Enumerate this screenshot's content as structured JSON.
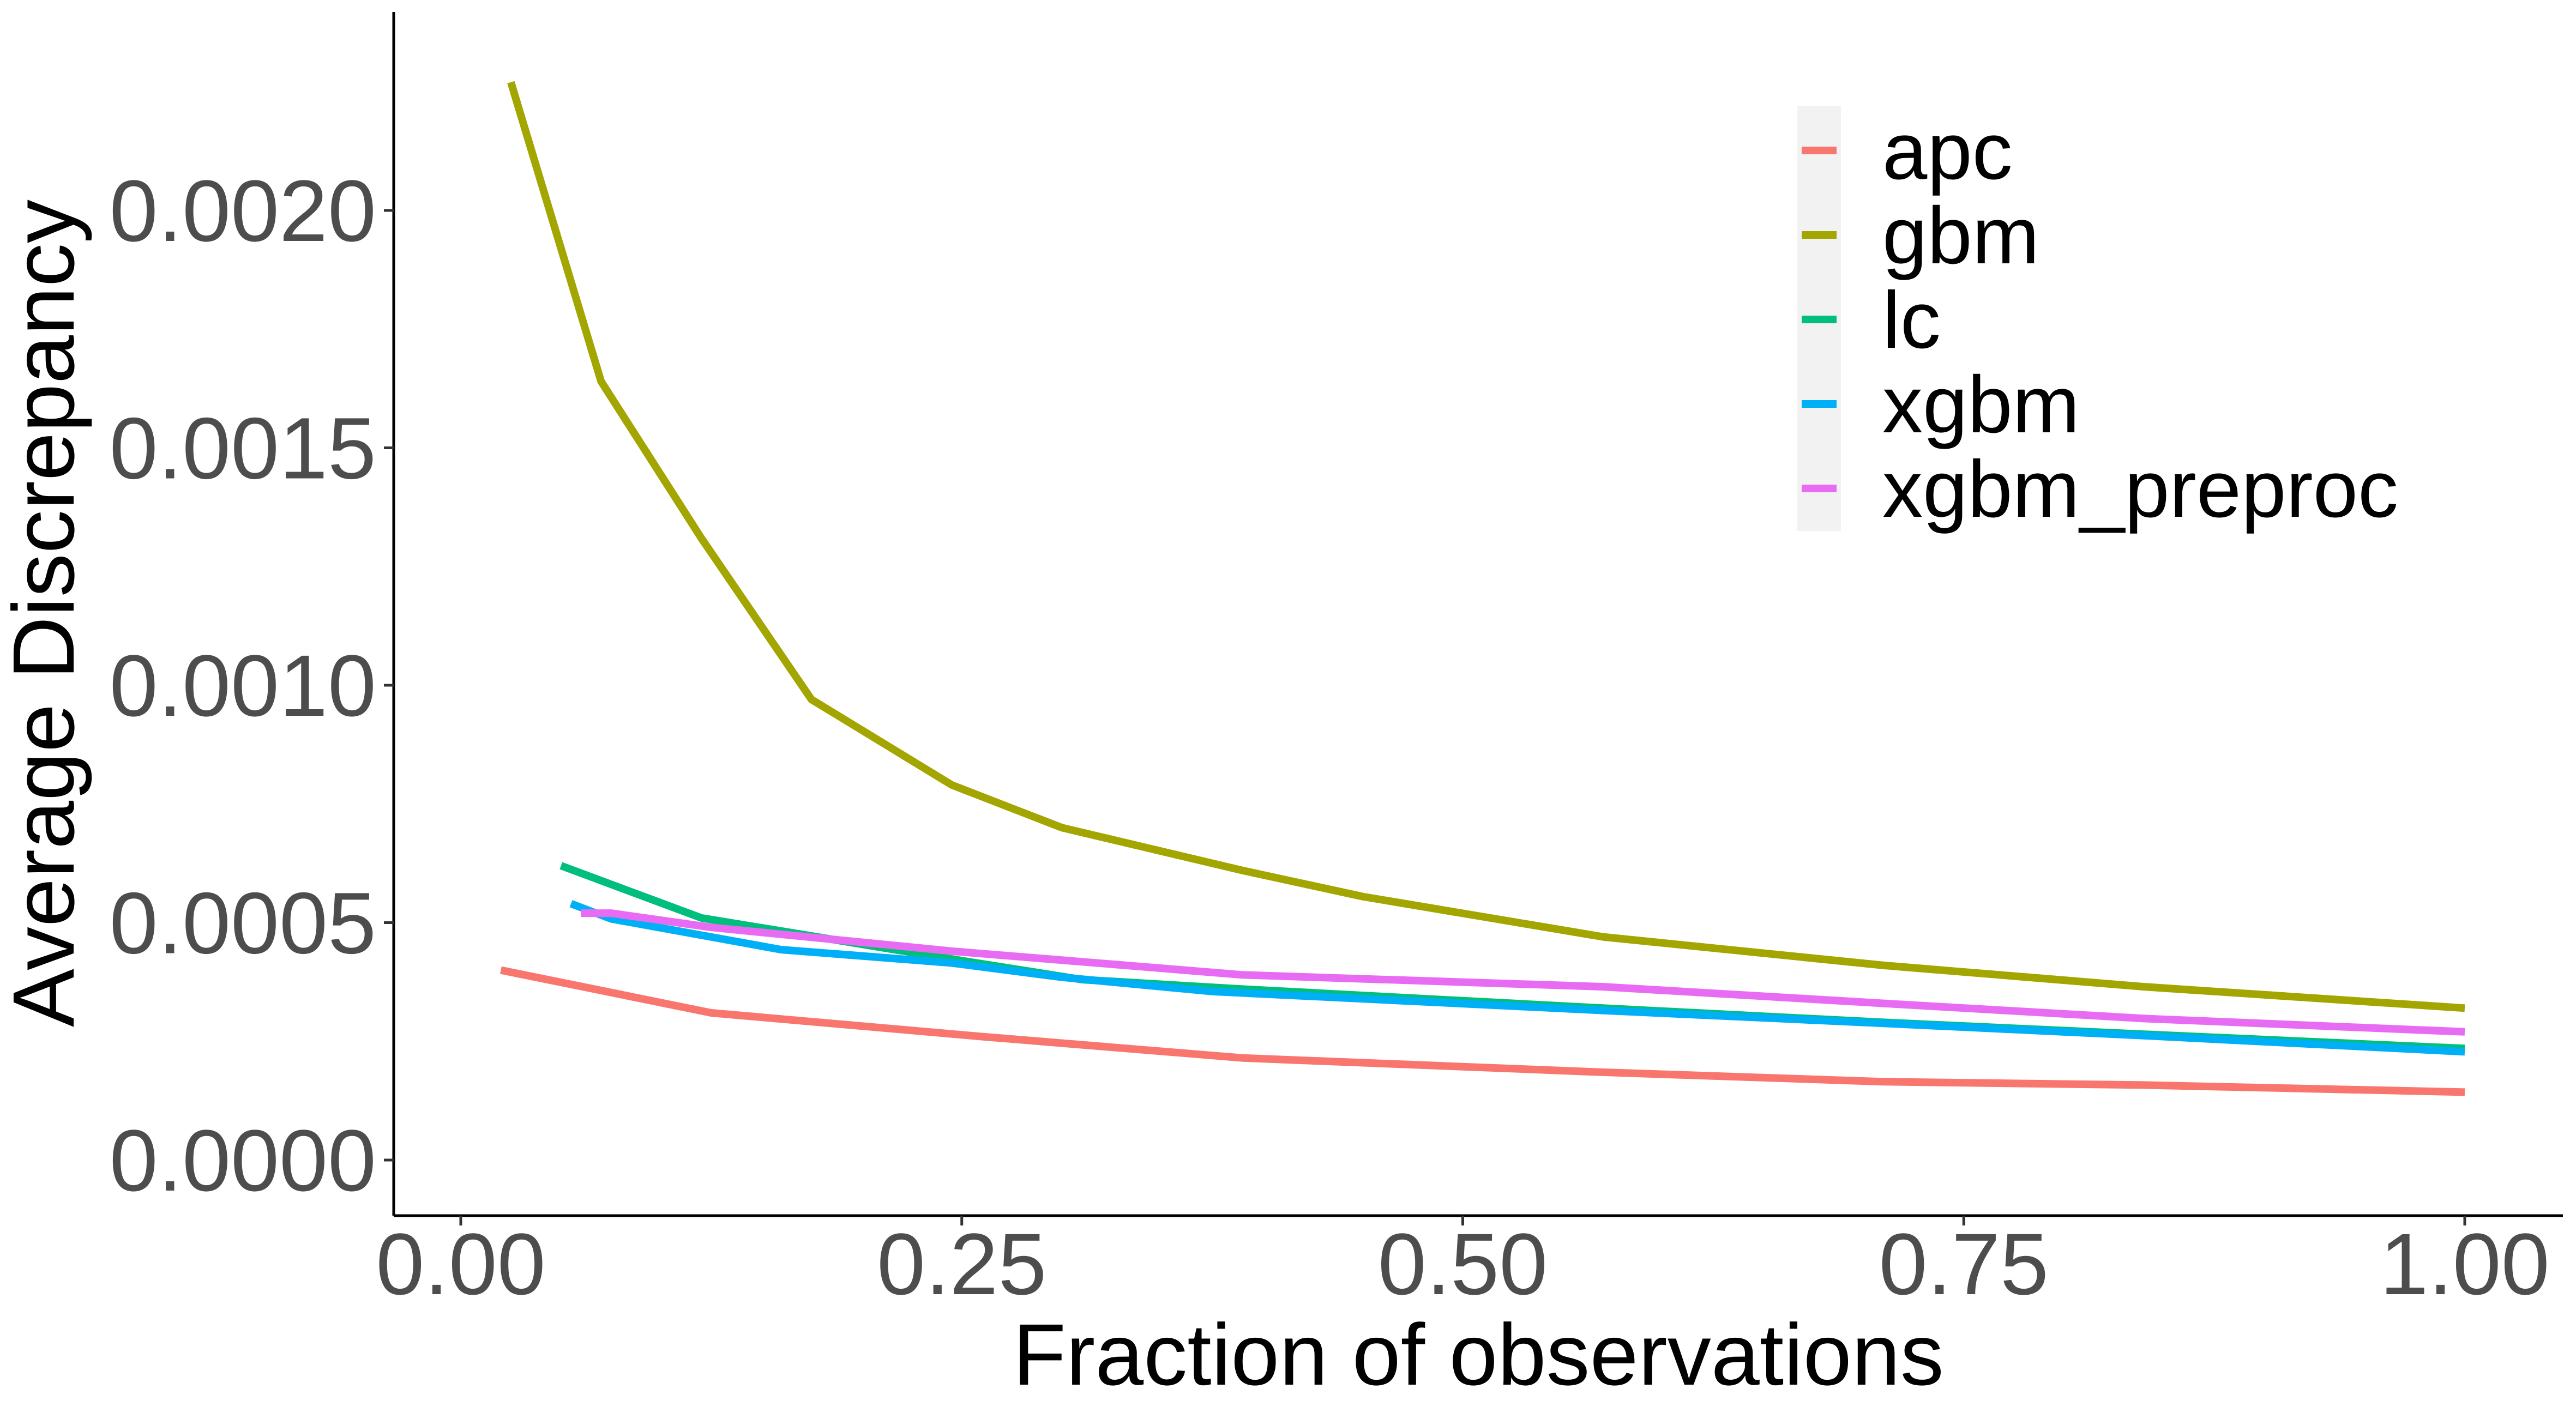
{
  "chart_data": {
    "type": "line",
    "title": "",
    "xlabel": "Fraction of observations",
    "ylabel": "Average Discrepancy",
    "xlim": [
      0,
      1.0
    ],
    "ylim": [
      0,
      0.0023
    ],
    "x_ticks": [
      0.0,
      0.25,
      0.5,
      0.75,
      1.0
    ],
    "x_tick_labels": [
      "0.00",
      "0.25",
      "0.50",
      "0.75",
      "1.00"
    ],
    "y_ticks": [
      0.0,
      0.0005,
      0.001,
      0.0015,
      0.002
    ],
    "y_tick_labels": [
      "0.0000",
      "0.0005",
      "0.0010",
      "0.0015",
      "0.0020"
    ],
    "grid": false,
    "legend_position": "top-right",
    "series": [
      {
        "name": "apc",
        "color": "#F8766D",
        "x": [
          0.02,
          0.125,
          0.26,
          0.39,
          0.57,
          0.71,
          0.84,
          1.0
        ],
        "y": [
          0.0004,
          0.00031,
          0.00026,
          0.000215,
          0.000185,
          0.000165,
          0.000158,
          0.000143
        ]
      },
      {
        "name": "gbm",
        "color": "#A3A500",
        "x": [
          0.025,
          0.07,
          0.12,
          0.175,
          0.245,
          0.3,
          0.39,
          0.45,
          0.57,
          0.71,
          0.84,
          1.0
        ],
        "y": [
          0.00227,
          0.00164,
          0.00131,
          0.00097,
          0.00079,
          0.0007,
          0.00061,
          0.000555,
          0.00047,
          0.00041,
          0.000365,
          0.00032
        ]
      },
      {
        "name": "lc",
        "color": "#00BF7D",
        "x": [
          0.05,
          0.12,
          0.25,
          0.31,
          0.39,
          0.57,
          0.71,
          0.84,
          1.0
        ],
        "y": [
          0.00062,
          0.00051,
          0.00042,
          0.00038,
          0.00036,
          0.00032,
          0.00029,
          0.000265,
          0.000235
        ]
      },
      {
        "name": "xgbm",
        "color": "#00B0F6",
        "x": [
          0.055,
          0.075,
          0.16,
          0.245,
          0.3,
          0.375,
          0.57,
          0.71,
          0.84,
          1.0
        ],
        "y": [
          0.00054,
          0.000508,
          0.000443,
          0.000415,
          0.000385,
          0.000355,
          0.000315,
          0.000288,
          0.000262,
          0.000228
        ]
      },
      {
        "name": "xgbm_preproc",
        "color": "#E76BF3",
        "x": [
          0.06,
          0.075,
          0.125,
          0.245,
          0.39,
          0.57,
          0.71,
          0.84,
          1.0
        ],
        "y": [
          0.00052,
          0.00052,
          0.00049,
          0.00044,
          0.00039,
          0.000365,
          0.00033,
          0.000298,
          0.00027
        ]
      }
    ]
  }
}
